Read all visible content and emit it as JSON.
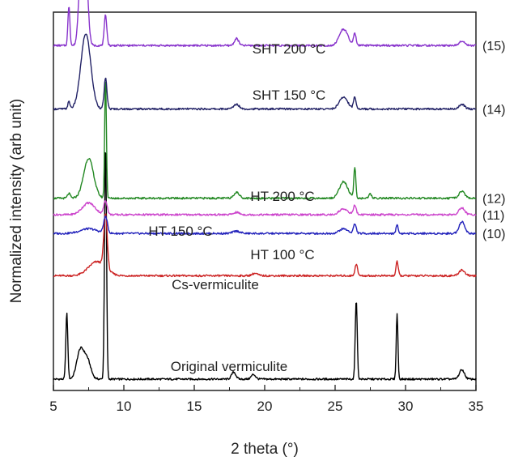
{
  "chart_data": {
    "type": "line",
    "xlabel": "2 theta (°)",
    "ylabel": "Normalized intensity (arb unit)",
    "xlim": [
      5,
      35
    ],
    "xticks": [
      5,
      10,
      15,
      20,
      25,
      30,
      35
    ],
    "y_tick_labels": false,
    "series": [
      {
        "label": "Original vermiculite",
        "side_label": "",
        "color": "#000000",
        "baseline": 0.0,
        "peaks": [
          [
            5.95,
            0.28,
            0.07
          ],
          [
            6.9,
            0.12,
            0.25
          ],
          [
            7.4,
            0.08,
            0.25
          ],
          [
            8.7,
            1.0,
            0.07
          ],
          [
            17.8,
            0.03,
            0.15
          ],
          [
            19.2,
            0.02,
            0.15
          ],
          [
            26.5,
            0.34,
            0.07
          ],
          [
            29.4,
            0.28,
            0.06
          ],
          [
            34.0,
            0.04,
            0.18
          ]
        ]
      },
      {
        "label": "Cs-vermiculite",
        "side_label": "",
        "color": "#cc2222",
        "baseline": 0.44,
        "peaks": [
          [
            8.1,
            0.06,
            0.6
          ],
          [
            8.7,
            0.23,
            0.12
          ],
          [
            19.3,
            0.01,
            0.2
          ],
          [
            26.5,
            0.05,
            0.09
          ],
          [
            29.4,
            0.06,
            0.08
          ],
          [
            34.0,
            0.025,
            0.2
          ]
        ]
      },
      {
        "label": "HT 100 °C",
        "side_label": "(10)",
        "color": "#2222bb",
        "baseline": 0.62,
        "peaks": [
          [
            7.5,
            0.02,
            0.6
          ],
          [
            8.7,
            0.07,
            0.13
          ],
          [
            18.0,
            0.01,
            0.25
          ],
          [
            25.6,
            0.02,
            0.3
          ],
          [
            26.4,
            0.04,
            0.1
          ],
          [
            29.4,
            0.04,
            0.07
          ],
          [
            34.0,
            0.05,
            0.2
          ]
        ]
      },
      {
        "label": "HT 150 °C",
        "side_label": "(11)",
        "color": "#cc44cc",
        "baseline": 0.7,
        "peaks": [
          [
            7.5,
            0.05,
            0.45
          ],
          [
            8.7,
            0.06,
            0.12
          ],
          [
            18.0,
            0.01,
            0.2
          ],
          [
            25.6,
            0.025,
            0.3
          ],
          [
            26.4,
            0.04,
            0.1
          ],
          [
            34.0,
            0.03,
            0.2
          ]
        ]
      },
      {
        "label": "HT 200 °C",
        "side_label": "(12)",
        "color": "#228822",
        "baseline": 0.77,
        "peaks": [
          [
            6.1,
            0.02,
            0.1
          ],
          [
            7.5,
            0.17,
            0.35
          ],
          [
            8.7,
            0.52,
            0.06
          ],
          [
            18.0,
            0.025,
            0.2
          ],
          [
            25.6,
            0.07,
            0.3
          ],
          [
            26.4,
            0.13,
            0.07
          ],
          [
            27.5,
            0.02,
            0.08
          ],
          [
            34.0,
            0.03,
            0.2
          ]
        ]
      },
      {
        "label": "SHT 150 °C",
        "side_label": "(14)",
        "color": "#222266",
        "baseline": 1.15,
        "peaks": [
          [
            6.1,
            0.03,
            0.08
          ],
          [
            7.3,
            0.32,
            0.35
          ],
          [
            8.7,
            0.13,
            0.1
          ],
          [
            18.0,
            0.02,
            0.2
          ],
          [
            25.6,
            0.05,
            0.3
          ],
          [
            26.4,
            0.05,
            0.09
          ],
          [
            34.0,
            0.02,
            0.2
          ]
        ]
      },
      {
        "label": "SHT 200 °C",
        "side_label": "(15)",
        "color": "#8833cc",
        "baseline": 1.42,
        "peaks": [
          [
            6.1,
            0.17,
            0.07
          ],
          [
            6.95,
            0.32,
            0.16
          ],
          [
            7.3,
            0.32,
            0.16
          ],
          [
            8.7,
            0.13,
            0.09
          ],
          [
            18.0,
            0.03,
            0.15
          ],
          [
            25.6,
            0.07,
            0.3
          ],
          [
            26.4,
            0.05,
            0.09
          ],
          [
            34.0,
            0.02,
            0.2
          ]
        ]
      }
    ]
  }
}
